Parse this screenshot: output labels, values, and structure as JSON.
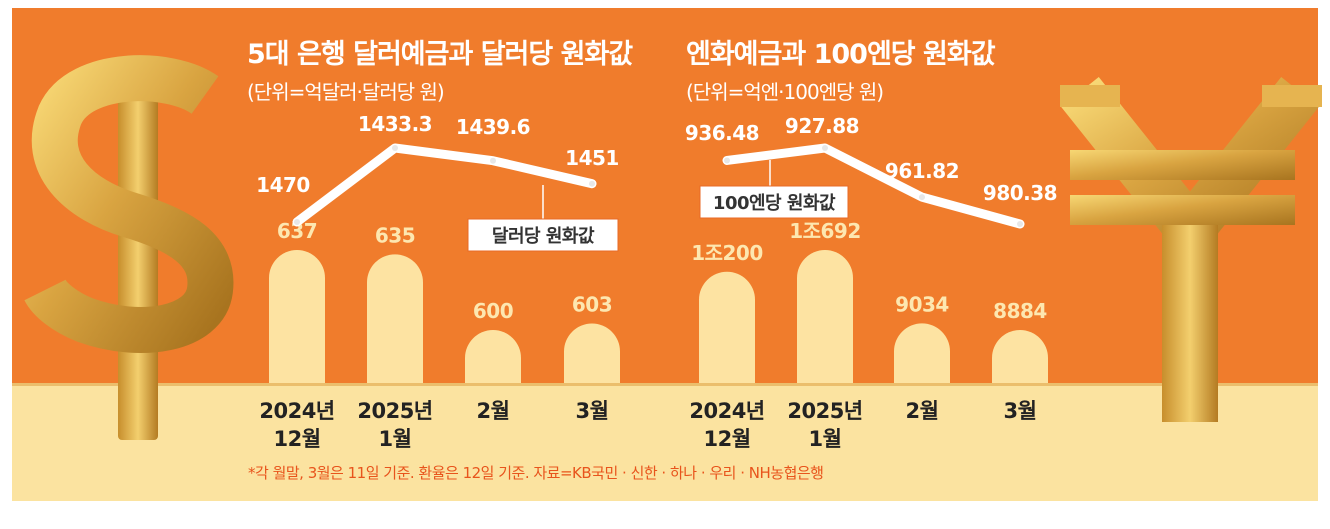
{
  "footnote": "*각 월말, 3월은 11일 기준. 환율은 12일 기준. 자료=KB국민 · 신한 · 하나 · 우리 · NH농협은행",
  "colors": {
    "background_orange": "#f07c2c",
    "bottom_band": "#fbe3a0",
    "bar_fill": "#fde3a2",
    "bar_label": "#fde7b0",
    "line": "#ffffff",
    "line_label": "#ffffff",
    "category_label": "#222222",
    "footnote": "#e8541c"
  },
  "icons": {
    "left": "dollar-sign-icon",
    "right": "yen-sign-icon"
  },
  "chart_data": [
    {
      "type": "bar",
      "title": "5대 은행 달러예금과 달러당 원화값",
      "subtitle": "(단위=억달러·달러당 원)",
      "categories": [
        [
          "2024년",
          "12월"
        ],
        [
          "2025년",
          "1월"
        ],
        [
          "2월"
        ],
        [
          "3월"
        ]
      ],
      "bars": {
        "values": [
          637,
          635,
          600,
          603
        ],
        "labels": [
          "637",
          "635",
          "600",
          "603"
        ]
      },
      "line": {
        "name": "달러당 원화값",
        "values": [
          1470,
          1433.3,
          1439.6,
          1451
        ],
        "labels": [
          "1470",
          "1433.3",
          "1439.6",
          "1451"
        ],
        "axis": "inverted"
      }
    },
    {
      "type": "bar",
      "title": "엔화예금과 100엔당 원화값",
      "subtitle": "(단위=억엔·100엔당 원)",
      "categories": [
        [
          "2024년",
          "12월"
        ],
        [
          "2025년",
          "1월"
        ],
        [
          "2월"
        ],
        [
          "3월"
        ]
      ],
      "bars": {
        "values": [
          10200,
          10692,
          9034,
          8884
        ],
        "labels": [
          "1조200",
          "1조692",
          "9034",
          "8884"
        ]
      },
      "line": {
        "name": "100엔당 원화값",
        "values": [
          936.48,
          927.88,
          961.82,
          980.38
        ],
        "labels": [
          "936.48",
          "927.88",
          "961.82",
          "980.38"
        ],
        "axis": "inverted"
      }
    }
  ]
}
